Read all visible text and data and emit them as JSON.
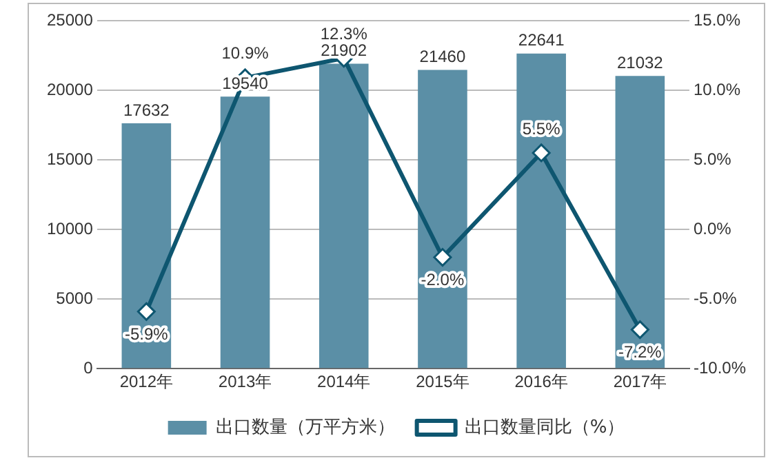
{
  "chart_data": {
    "type": "bar",
    "categories": [
      "2012年",
      "2013年",
      "2014年",
      "2015年",
      "2016年",
      "2017年"
    ],
    "series": [
      {
        "name": "出口数量（万平方米）",
        "color": "#5b8fa6",
        "values": [
          17632,
          19540,
          21902,
          21460,
          22641,
          21032
        ],
        "value_labels": [
          "17632",
          "19540",
          "21902",
          "21460",
          "22641",
          "21032"
        ]
      },
      {
        "name": "出口数量同比（%）",
        "type": "line",
        "axis": "y2",
        "color": "#0e5670",
        "marker": "diamond",
        "values": [
          -5.9,
          10.9,
          12.3,
          -2.0,
          5.5,
          -7.2
        ],
        "value_labels": [
          "-5.9%",
          "10.9%",
          "12.3%",
          "-2.0%",
          "5.5%",
          "-7.2%"
        ]
      }
    ],
    "ylim": [
      0,
      25000
    ],
    "yticks": [
      0,
      5000,
      10000,
      15000,
      20000,
      25000
    ],
    "y2lim": [
      -10,
      15
    ],
    "y2ticks": [
      {
        "value": -10,
        "label": "-10.0%"
      },
      {
        "value": -5,
        "label": "-5.0%"
      },
      {
        "value": 0,
        "label": "0.0%"
      },
      {
        "value": 5,
        "label": "5.0%"
      },
      {
        "value": 10,
        "label": "10.0%"
      },
      {
        "value": 15,
        "label": "15.0%"
      }
    ],
    "grid": "y",
    "legend": "bottom"
  }
}
